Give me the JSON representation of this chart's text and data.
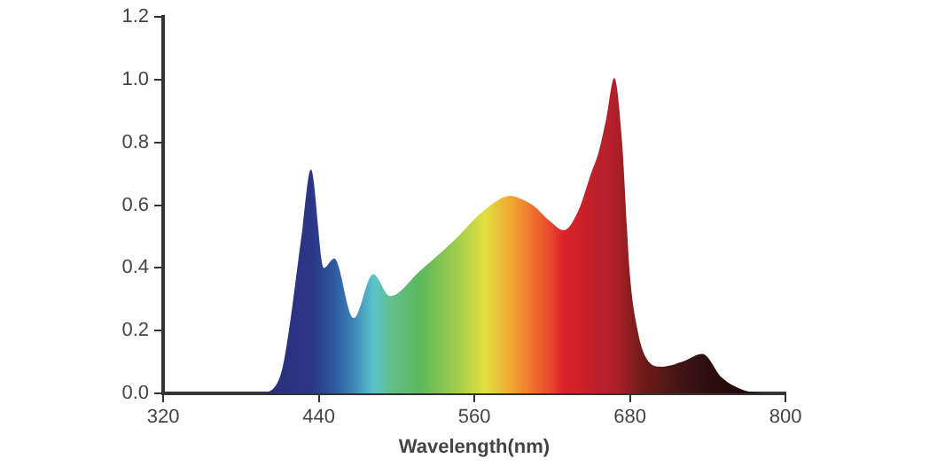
{
  "chart_data": {
    "type": "area",
    "xlabel": "Wavelength(nm)",
    "x": [
      395,
      406,
      412,
      417,
      427,
      434,
      444,
      452,
      467,
      482,
      495,
      518,
      545,
      568,
      588,
      593,
      605,
      618,
      629,
      640,
      650,
      656,
      662,
      668,
      674,
      680,
      686,
      693,
      704,
      720,
      736,
      751,
      768,
      782
    ],
    "values": [
      0,
      0.02,
      0.08,
      0.2,
      0.51,
      0.714,
      0.4,
      0.43,
      0.24,
      0.38,
      0.31,
      0.39,
      0.49,
      0.585,
      0.63,
      0.625,
      0.6,
      0.55,
      0.52,
      0.58,
      0.7,
      0.77,
      0.88,
      1.006,
      0.8,
      0.38,
      0.2,
      0.11,
      0.085,
      0.1,
      0.126,
      0.05,
      0.01,
      0
    ],
    "colors": [
      "#2b2f7a",
      "#2b2f7a",
      "#2b307c",
      "#2b3280",
      "#2b3585",
      "#2b3585",
      "#2d4892",
      "#2e5aa0",
      "#3d86b8",
      "#5bc3cc",
      "#62bf8e",
      "#5cb85a",
      "#9ccb4e",
      "#e2e040",
      "#f0a830",
      "#f09a30",
      "#f07030",
      "#e84a2c",
      "#d92228",
      "#d0222a",
      "#c0202a",
      "#bb202a",
      "#b6202a",
      "#b0202a",
      "#a01f26",
      "#8a1f20",
      "#7a1c1c",
      "#6a1a18",
      "#5a1a16",
      "#401414",
      "#301010",
      "#280c0c",
      "#220a0a",
      "#200808"
    ],
    "xlim": [
      320,
      800
    ],
    "xticks": [
      320,
      440,
      560,
      680,
      800
    ],
    "ylim": [
      0,
      1.2
    ],
    "yticks": [
      {
        "value": 0,
        "label": "0.0"
      },
      {
        "value": 0.2,
        "label": "0.2"
      },
      {
        "value": 0.4,
        "label": "0.4"
      },
      {
        "value": 0.6,
        "label": "0.6"
      },
      {
        "value": 0.8,
        "label": "0.8"
      },
      {
        "value": 1,
        "label": "1.0"
      },
      {
        "value": 1.2,
        "label": "1.2"
      }
    ],
    "grid": false,
    "legend": false
  }
}
